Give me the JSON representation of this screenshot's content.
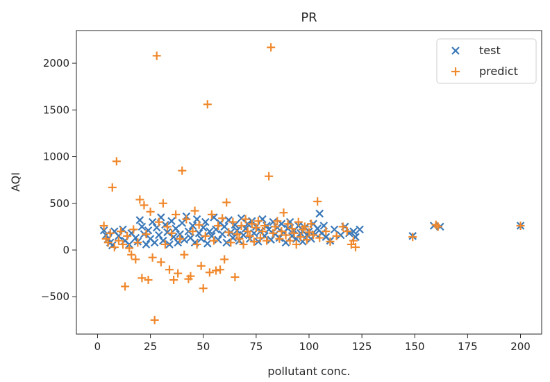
{
  "chart_data": {
    "type": "scatter",
    "title": "PR",
    "xlabel": "pollutant conc.",
    "ylabel": "AQI",
    "xlim": [
      -10,
      210
    ],
    "ylim": [
      -900,
      2350
    ],
    "xticks": [
      0,
      25,
      50,
      75,
      100,
      125,
      150,
      175,
      200
    ],
    "yticks": [
      -500,
      0,
      500,
      1000,
      1500,
      2000
    ],
    "xtick_labels": [
      "0",
      "25",
      "50",
      "75",
      "100",
      "125",
      "150",
      "175",
      "200"
    ],
    "ytick_labels": [
      "−500",
      "0",
      "500",
      "1000",
      "1500",
      "2000"
    ],
    "grid": false,
    "legend_position": "top-right",
    "series": [
      {
        "name": "test",
        "marker": "x",
        "color": "#3a78b8",
        "points": [
          [
            3,
            210
          ],
          [
            4,
            160
          ],
          [
            5,
            120
          ],
          [
            6,
            80
          ],
          [
            7,
            50
          ],
          [
            8,
            200
          ],
          [
            10,
            150
          ],
          [
            12,
            220
          ],
          [
            13,
            100
          ],
          [
            15,
            60
          ],
          [
            16,
            180
          ],
          [
            18,
            130
          ],
          [
            19,
            90
          ],
          [
            20,
            320
          ],
          [
            21,
            250
          ],
          [
            22,
            170
          ],
          [
            23,
            60
          ],
          [
            24,
            210
          ],
          [
            25,
            120
          ],
          [
            26,
            300
          ],
          [
            27,
            80
          ],
          [
            28,
            240
          ],
          [
            29,
            160
          ],
          [
            30,
            350
          ],
          [
            31,
            100
          ],
          [
            32,
            270
          ],
          [
            33,
            190
          ],
          [
            34,
            60
          ],
          [
            35,
            310
          ],
          [
            36,
            140
          ],
          [
            37,
            230
          ],
          [
            38,
            80
          ],
          [
            39,
            170
          ],
          [
            40,
            290
          ],
          [
            41,
            110
          ],
          [
            42,
            360
          ],
          [
            43,
            200
          ],
          [
            44,
            130
          ],
          [
            45,
            260
          ],
          [
            46,
            80
          ],
          [
            47,
            330
          ],
          [
            48,
            180
          ],
          [
            49,
            120
          ],
          [
            50,
            240
          ],
          [
            51,
            300
          ],
          [
            52,
            70
          ],
          [
            53,
            200
          ],
          [
            54,
            150
          ],
          [
            55,
            350
          ],
          [
            56,
            220
          ],
          [
            57,
            110
          ],
          [
            58,
            290
          ],
          [
            59,
            170
          ],
          [
            60,
            250
          ],
          [
            61,
            80
          ],
          [
            62,
            320
          ],
          [
            63,
            190
          ],
          [
            64,
            130
          ],
          [
            65,
            270
          ],
          [
            66,
            210
          ],
          [
            67,
            100
          ],
          [
            68,
            340
          ],
          [
            69,
            160
          ],
          [
            70,
            230
          ],
          [
            71,
            280
          ],
          [
            72,
            120
          ],
          [
            73,
            310
          ],
          [
            74,
            180
          ],
          [
            75,
            250
          ],
          [
            76,
            90
          ],
          [
            77,
            200
          ],
          [
            78,
            330
          ],
          [
            79,
            150
          ],
          [
            80,
            260
          ],
          [
            81,
            220
          ],
          [
            82,
            110
          ],
          [
            83,
            300
          ],
          [
            84,
            170
          ],
          [
            85,
            240
          ],
          [
            86,
            130
          ],
          [
            87,
            280
          ],
          [
            88,
            190
          ],
          [
            89,
            80
          ],
          [
            90,
            230
          ],
          [
            91,
            300
          ],
          [
            92,
            150
          ],
          [
            93,
            210
          ],
          [
            94,
            120
          ],
          [
            95,
            260
          ],
          [
            96,
            180
          ],
          [
            97,
            90
          ],
          [
            98,
            240
          ],
          [
            99,
            160
          ],
          [
            100,
            200
          ],
          [
            101,
            120
          ],
          [
            102,
            280
          ],
          [
            103,
            170
          ],
          [
            104,
            230
          ],
          [
            105,
            390
          ],
          [
            106,
            180
          ],
          [
            107,
            260
          ],
          [
            108,
            140
          ],
          [
            110,
            100
          ],
          [
            112,
            220
          ],
          [
            115,
            160
          ],
          [
            117,
            250
          ],
          [
            119,
            180
          ],
          [
            121,
            200
          ],
          [
            122,
            140
          ],
          [
            124,
            220
          ],
          [
            149,
            150
          ],
          [
            159,
            260
          ],
          [
            162,
            250
          ],
          [
            200,
            260
          ]
        ]
      },
      {
        "name": "predict",
        "marker": "+",
        "color": "#f0882c",
        "points": [
          [
            3,
            260
          ],
          [
            4,
            120
          ],
          [
            5,
            80
          ],
          [
            6,
            180
          ],
          [
            7,
            670
          ],
          [
            8,
            30
          ],
          [
            9,
            950
          ],
          [
            10,
            100
          ],
          [
            11,
            200
          ],
          [
            12,
            60
          ],
          [
            13,
            -390
          ],
          [
            14,
            150
          ],
          [
            15,
            20
          ],
          [
            16,
            -50
          ],
          [
            17,
            220
          ],
          [
            18,
            -100
          ],
          [
            19,
            80
          ],
          [
            20,
            540
          ],
          [
            21,
            -300
          ],
          [
            22,
            480
          ],
          [
            23,
            170
          ],
          [
            24,
            -320
          ],
          [
            25,
            410
          ],
          [
            26,
            -80
          ],
          [
            27,
            -750
          ],
          [
            28,
            2080
          ],
          [
            29,
            300
          ],
          [
            30,
            -130
          ],
          [
            31,
            500
          ],
          [
            32,
            60
          ],
          [
            33,
            250
          ],
          [
            34,
            -210
          ],
          [
            35,
            180
          ],
          [
            36,
            -320
          ],
          [
            37,
            380
          ],
          [
            38,
            -250
          ],
          [
            39,
            120
          ],
          [
            40,
            850
          ],
          [
            41,
            -50
          ],
          [
            42,
            330
          ],
          [
            43,
            -310
          ],
          [
            44,
            -280
          ],
          [
            45,
            200
          ],
          [
            46,
            420
          ],
          [
            47,
            60
          ],
          [
            48,
            270
          ],
          [
            49,
            -170
          ],
          [
            50,
            -410
          ],
          [
            51,
            150
          ],
          [
            52,
            1560
          ],
          [
            53,
            -240
          ],
          [
            54,
            380
          ],
          [
            55,
            100
          ],
          [
            56,
            -220
          ],
          [
            57,
            260
          ],
          [
            58,
            -210
          ],
          [
            59,
            340
          ],
          [
            60,
            -100
          ],
          [
            61,
            510
          ],
          [
            62,
            190
          ],
          [
            63,
            80
          ],
          [
            64,
            300
          ],
          [
            65,
            -290
          ],
          [
            66,
            170
          ],
          [
            67,
            120
          ],
          [
            68,
            260
          ],
          [
            69,
            60
          ],
          [
            70,
            330
          ],
          [
            71,
            200
          ],
          [
            72,
            150
          ],
          [
            73,
            280
          ],
          [
            74,
            90
          ],
          [
            75,
            240
          ],
          [
            76,
            310
          ],
          [
            77,
            130
          ],
          [
            78,
            200
          ],
          [
            79,
            260
          ],
          [
            80,
            100
          ],
          [
            81,
            790
          ],
          [
            82,
            2170
          ],
          [
            83,
            180
          ],
          [
            84,
            250
          ],
          [
            85,
            310
          ],
          [
            86,
            120
          ],
          [
            87,
            200
          ],
          [
            88,
            400
          ],
          [
            89,
            160
          ],
          [
            90,
            280
          ],
          [
            91,
            100
          ],
          [
            92,
            230
          ],
          [
            93,
            180
          ],
          [
            94,
            60
          ],
          [
            95,
            300
          ],
          [
            96,
            140
          ],
          [
            97,
            220
          ],
          [
            98,
            250
          ],
          [
            99,
            110
          ],
          [
            100,
            190
          ],
          [
            101,
            280
          ],
          [
            102,
            160
          ],
          [
            104,
            520
          ],
          [
            105,
            130
          ],
          [
            108,
            200
          ],
          [
            110,
            90
          ],
          [
            113,
            150
          ],
          [
            116,
            250
          ],
          [
            118,
            200
          ],
          [
            120,
            60
          ],
          [
            121,
            100
          ],
          [
            122,
            30
          ],
          [
            149,
            140
          ],
          [
            160,
            270
          ],
          [
            161,
            250
          ],
          [
            200,
            260
          ]
        ]
      }
    ]
  }
}
